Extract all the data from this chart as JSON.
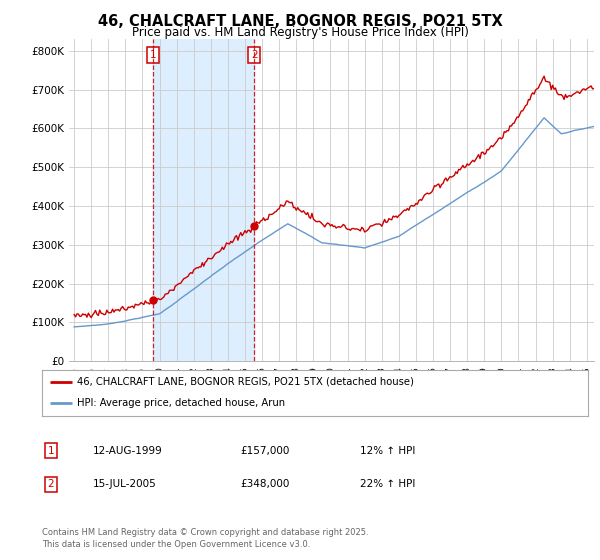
{
  "title": "46, CHALCRAFT LANE, BOGNOR REGIS, PO21 5TX",
  "subtitle": "Price paid vs. HM Land Registry's House Price Index (HPI)",
  "legend_label_red": "46, CHALCRAFT LANE, BOGNOR REGIS, PO21 5TX (detached house)",
  "legend_label_blue": "HPI: Average price, detached house, Arun",
  "footer": "Contains HM Land Registry data © Crown copyright and database right 2025.\nThis data is licensed under the Open Government Licence v3.0.",
  "annotation1_date": "12-AUG-1999",
  "annotation1_price": "£157,000",
  "annotation1_hpi": "12% ↑ HPI",
  "annotation2_date": "15-JUL-2005",
  "annotation2_price": "£348,000",
  "annotation2_hpi": "22% ↑ HPI",
  "red_color": "#cc0000",
  "blue_color": "#6699cc",
  "shade_color": "#ddeeff",
  "background_color": "#ffffff",
  "grid_color": "#cccccc",
  "ylim": [
    0,
    830000
  ],
  "yticks": [
    0,
    100000,
    200000,
    300000,
    400000,
    500000,
    600000,
    700000,
    800000
  ],
  "ytick_labels": [
    "£0",
    "£100K",
    "£200K",
    "£300K",
    "£400K",
    "£500K",
    "£600K",
    "£700K",
    "£800K"
  ],
  "sale1_x": 1999.62,
  "sale1_y": 157000,
  "sale2_x": 2005.54,
  "sale2_y": 348000,
  "vline1_x": 1999.62,
  "vline2_x": 2005.54,
  "xmin": 1995.0,
  "xmax": 2025.42
}
